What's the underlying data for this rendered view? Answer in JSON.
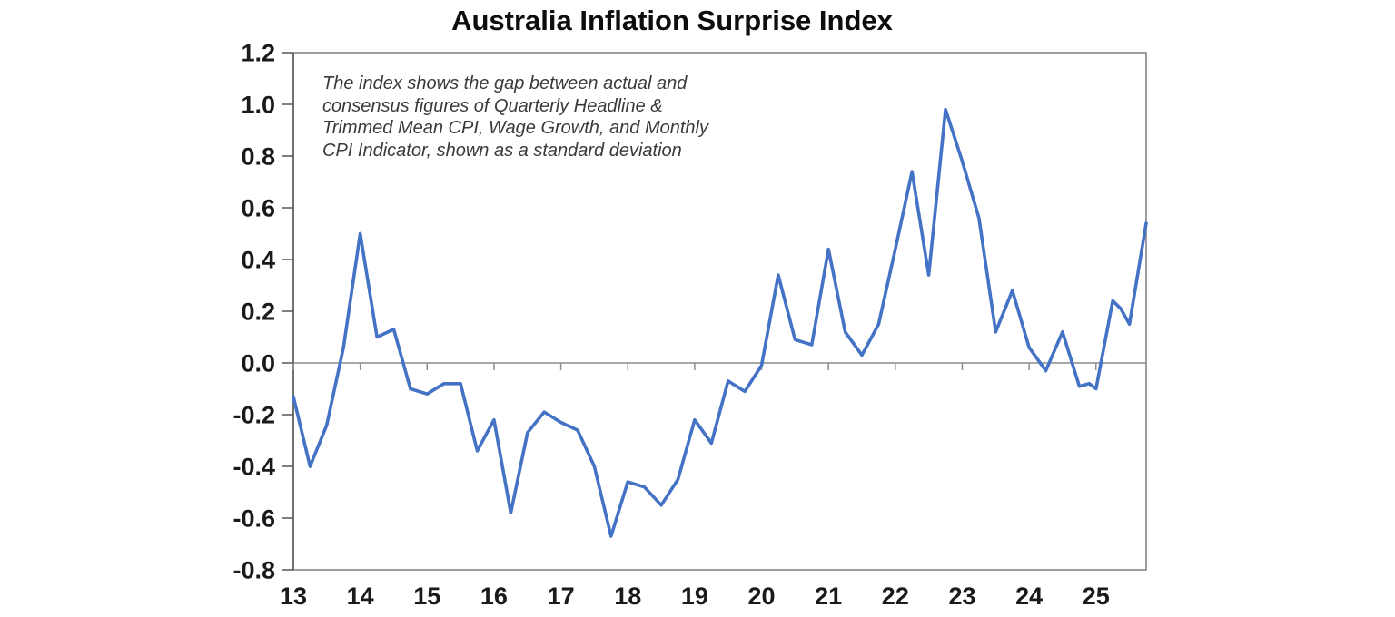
{
  "title": "Australia Inflation Surprise Index",
  "annotation": {
    "lines": [
      "The index shows the gap between actual and",
      "consensus figures of Quarterly Headline &",
      "Trimmed Mean CPI, Wage Growth, and Monthly",
      "CPI Indicator, shown as a standard deviation"
    ]
  },
  "colors": {
    "line": "#4472C4",
    "plot_border": "#7f7f7f",
    "axis": "#555555",
    "zero_line": "#8c8c8c",
    "tick_label": "#1a1a1a",
    "annotation_text": "#3a3a3a",
    "background": "#ffffff"
  },
  "chart_data": {
    "type": "line",
    "title": "Australia Inflation Surprise Index",
    "xlabel": "",
    "ylabel": "",
    "xlim": [
      13,
      25.75
    ],
    "ylim": [
      -0.8,
      1.2
    ],
    "grid": false,
    "legend": false,
    "zero_baseline": 0.0,
    "x_tick_labels": [
      "13",
      "14",
      "15",
      "16",
      "17",
      "18",
      "19",
      "20",
      "21",
      "22",
      "23",
      "24",
      "25"
    ],
    "x_tick_values": [
      13,
      14,
      15,
      16,
      17,
      18,
      19,
      20,
      21,
      22,
      23,
      24,
      25
    ],
    "y_tick_labels": [
      "-0.8",
      "-0.6",
      "-0.4",
      "-0.2",
      "0.0",
      "0.2",
      "0.4",
      "0.6",
      "0.8",
      "1.0",
      "1.2"
    ],
    "y_tick_values": [
      -0.8,
      -0.6,
      -0.4,
      -0.2,
      0.0,
      0.2,
      0.4,
      0.6,
      0.8,
      1.0,
      1.2
    ],
    "series_name": "Inflation surprise index (standard deviations)",
    "points": [
      [
        13.0,
        -0.13
      ],
      [
        13.25,
        -0.4
      ],
      [
        13.5,
        -0.24
      ],
      [
        13.75,
        0.06
      ],
      [
        14.0,
        0.5
      ],
      [
        14.25,
        0.1
      ],
      [
        14.5,
        0.13
      ],
      [
        14.75,
        -0.1
      ],
      [
        15.0,
        -0.12
      ],
      [
        15.25,
        -0.08
      ],
      [
        15.5,
        -0.08
      ],
      [
        15.75,
        -0.34
      ],
      [
        16.0,
        -0.22
      ],
      [
        16.25,
        -0.58
      ],
      [
        16.5,
        -0.27
      ],
      [
        16.75,
        -0.19
      ],
      [
        17.0,
        -0.23
      ],
      [
        17.25,
        -0.26
      ],
      [
        17.5,
        -0.4
      ],
      [
        17.75,
        -0.67
      ],
      [
        18.0,
        -0.46
      ],
      [
        18.25,
        -0.48
      ],
      [
        18.5,
        -0.55
      ],
      [
        18.75,
        -0.45
      ],
      [
        19.0,
        -0.22
      ],
      [
        19.25,
        -0.31
      ],
      [
        19.5,
        -0.07
      ],
      [
        19.75,
        -0.11
      ],
      [
        20.0,
        -0.01
      ],
      [
        20.25,
        0.34
      ],
      [
        20.5,
        0.09
      ],
      [
        20.75,
        0.07
      ],
      [
        21.0,
        0.44
      ],
      [
        21.25,
        0.12
      ],
      [
        21.5,
        0.03
      ],
      [
        21.75,
        0.15
      ],
      [
        22.0,
        0.44
      ],
      [
        22.25,
        0.74
      ],
      [
        22.5,
        0.34
      ],
      [
        22.75,
        0.98
      ],
      [
        23.0,
        0.78
      ],
      [
        23.25,
        0.56
      ],
      [
        23.5,
        0.12
      ],
      [
        23.75,
        0.28
      ],
      [
        24.0,
        0.06
      ],
      [
        24.25,
        -0.03
      ],
      [
        24.5,
        0.12
      ],
      [
        24.75,
        -0.09
      ],
      [
        24.9,
        -0.08
      ],
      [
        25.0,
        -0.1
      ],
      [
        25.25,
        0.24
      ],
      [
        25.37,
        0.21
      ],
      [
        25.5,
        0.15
      ],
      [
        25.75,
        0.54
      ]
    ]
  }
}
